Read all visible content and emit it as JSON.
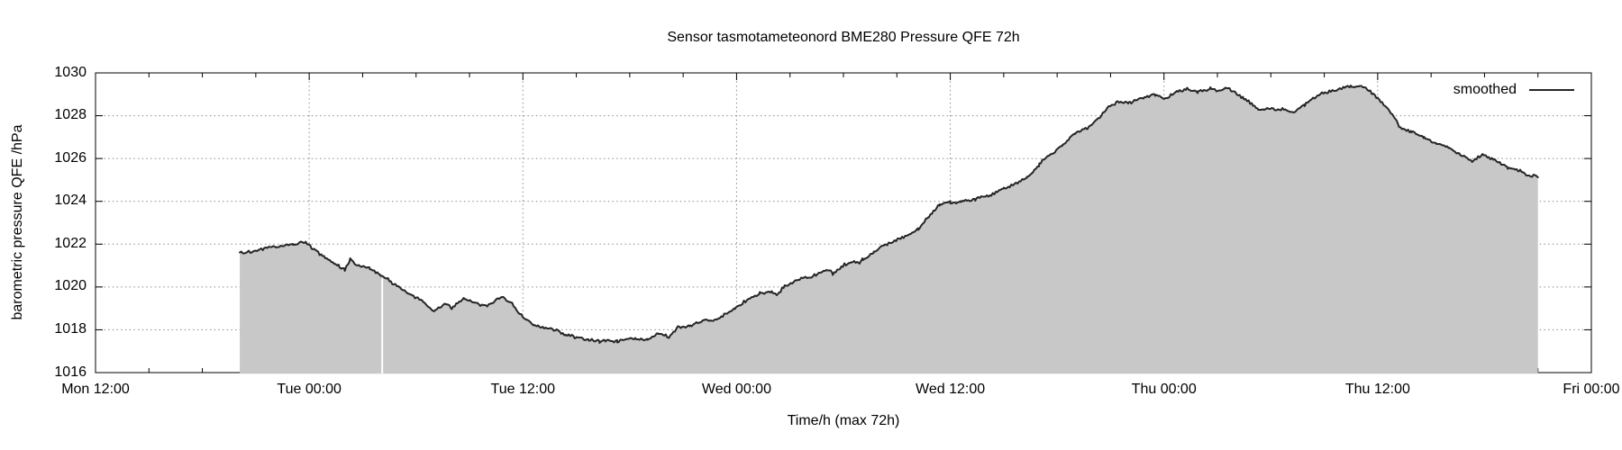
{
  "title": "Sensor tasmotameteonord BME280 Pressure QFE 72h",
  "legend": {
    "label": "smoothed"
  },
  "axes": {
    "x_label": "Time/h (max 72h)",
    "y_label": "barometric pressure QFE /hPa"
  },
  "colors": {
    "background": "#ffffff",
    "fill": "#c8c8c8",
    "line": "#262626",
    "grid": "#8a8a8a",
    "border": "#000000",
    "text": "#000000",
    "gap": "#ffffff"
  },
  "chart_data": {
    "type": "area",
    "title": "Sensor tasmotameteonord BME280 Pressure QFE 72h",
    "xlabel": "Time/h (max 72h)",
    "ylabel": "barometric pressure QFE /hPa",
    "ylim": [
      1016,
      1030
    ],
    "y_tick_step": 2,
    "x_range_hours": [
      0,
      84
    ],
    "grid": true,
    "legend_position": "top-right",
    "x_ticks": [
      {
        "hour": 0,
        "label": "Mon 12:00"
      },
      {
        "hour": 12,
        "label": "Tue 00:00"
      },
      {
        "hour": 24,
        "label": "Tue 12:00"
      },
      {
        "hour": 36,
        "label": "Wed 00:00"
      },
      {
        "hour": 48,
        "label": "Wed 12:00"
      },
      {
        "hour": 60,
        "label": "Thu 00:00"
      },
      {
        "hour": 72,
        "label": "Thu 12:00"
      },
      {
        "hour": 84,
        "label": "Fri 00:00"
      }
    ],
    "y_ticks": [
      {
        "value": 1016,
        "label": "1016"
      },
      {
        "value": 1018,
        "label": "1018"
      },
      {
        "value": 1020,
        "label": "1020"
      },
      {
        "value": 1022,
        "label": "1022"
      },
      {
        "value": 1024,
        "label": "1024"
      },
      {
        "value": 1026,
        "label": "1026"
      },
      {
        "value": 1028,
        "label": "1028"
      },
      {
        "value": 1030,
        "label": "1030"
      }
    ],
    "minor_tick_hours": 3,
    "data_start_hour": 8.1,
    "data_end_hour": 81.0,
    "data_gap_hour": 16.1,
    "series": [
      {
        "name": "smoothed",
        "style": "filled-noisy-line",
        "points": [
          [
            8.1,
            1021.6
          ],
          [
            8.8,
            1021.65
          ],
          [
            9.8,
            1021.85
          ],
          [
            10.5,
            1021.9
          ],
          [
            11.1,
            1022.0
          ],
          [
            11.8,
            1022.1
          ],
          [
            12.2,
            1021.8
          ],
          [
            12.5,
            1021.6
          ],
          [
            12.9,
            1021.4
          ],
          [
            13.4,
            1021.1
          ],
          [
            13.7,
            1020.95
          ],
          [
            14.0,
            1020.8
          ],
          [
            14.3,
            1021.3
          ],
          [
            14.7,
            1021.0
          ],
          [
            15.4,
            1020.9
          ],
          [
            16.0,
            1020.55
          ],
          [
            16.5,
            1020.3
          ],
          [
            17.1,
            1019.95
          ],
          [
            17.6,
            1019.7
          ],
          [
            18.1,
            1019.45
          ],
          [
            18.4,
            1019.3
          ],
          [
            19.0,
            1018.85
          ],
          [
            19.7,
            1019.25
          ],
          [
            20.0,
            1019.0
          ],
          [
            20.7,
            1019.5
          ],
          [
            21.1,
            1019.3
          ],
          [
            22.0,
            1019.1
          ],
          [
            22.5,
            1019.4
          ],
          [
            22.9,
            1019.5
          ],
          [
            23.4,
            1019.2
          ],
          [
            24.0,
            1018.6
          ],
          [
            24.6,
            1018.2
          ],
          [
            25.4,
            1018.05
          ],
          [
            25.9,
            1017.95
          ],
          [
            26.4,
            1017.75
          ],
          [
            27.0,
            1017.65
          ],
          [
            27.7,
            1017.55
          ],
          [
            28.3,
            1017.45
          ],
          [
            28.7,
            1017.5
          ],
          [
            29.3,
            1017.45
          ],
          [
            29.7,
            1017.55
          ],
          [
            30.3,
            1017.6
          ],
          [
            31.0,
            1017.55
          ],
          [
            31.6,
            1017.85
          ],
          [
            32.2,
            1017.65
          ],
          [
            32.7,
            1018.1
          ],
          [
            33.4,
            1018.2
          ],
          [
            34.1,
            1018.4
          ],
          [
            34.8,
            1018.5
          ],
          [
            35.3,
            1018.7
          ],
          [
            35.9,
            1019.0
          ],
          [
            36.6,
            1019.4
          ],
          [
            37.3,
            1019.7
          ],
          [
            38.0,
            1019.75
          ],
          [
            38.3,
            1019.65
          ],
          [
            38.7,
            1020.05
          ],
          [
            39.2,
            1020.25
          ],
          [
            39.7,
            1020.4
          ],
          [
            40.2,
            1020.5
          ],
          [
            40.7,
            1020.65
          ],
          [
            41.2,
            1020.8
          ],
          [
            41.4,
            1020.6
          ],
          [
            41.8,
            1020.9
          ],
          [
            42.2,
            1021.1
          ],
          [
            42.6,
            1021.2
          ],
          [
            42.9,
            1021.1
          ],
          [
            43.1,
            1021.3
          ],
          [
            43.7,
            1021.6
          ],
          [
            44.2,
            1021.9
          ],
          [
            44.7,
            1022.1
          ],
          [
            45.6,
            1022.4
          ],
          [
            46.2,
            1022.7
          ],
          [
            46.8,
            1023.3
          ],
          [
            47.4,
            1023.85
          ],
          [
            48.0,
            1023.95
          ],
          [
            48.4,
            1023.9
          ],
          [
            48.6,
            1024.0
          ],
          [
            49.4,
            1024.1
          ],
          [
            49.8,
            1024.2
          ],
          [
            50.3,
            1024.3
          ],
          [
            51.0,
            1024.6
          ],
          [
            51.7,
            1024.85
          ],
          [
            52.3,
            1025.1
          ],
          [
            53.0,
            1025.7
          ],
          [
            53.2,
            1025.95
          ],
          [
            53.7,
            1026.2
          ],
          [
            54.3,
            1026.6
          ],
          [
            55.0,
            1027.2
          ],
          [
            55.7,
            1027.4
          ],
          [
            56.4,
            1027.9
          ],
          [
            56.9,
            1028.45
          ],
          [
            57.4,
            1028.65
          ],
          [
            58.0,
            1028.6
          ],
          [
            58.9,
            1028.85
          ],
          [
            59.5,
            1029.0
          ],
          [
            60.0,
            1028.8
          ],
          [
            60.3,
            1028.9
          ],
          [
            60.8,
            1029.15
          ],
          [
            61.3,
            1029.25
          ],
          [
            61.9,
            1029.1
          ],
          [
            62.6,
            1029.25
          ],
          [
            63.1,
            1029.15
          ],
          [
            63.6,
            1029.3
          ],
          [
            64.0,
            1029.05
          ],
          [
            64.5,
            1028.8
          ],
          [
            65.0,
            1028.5
          ],
          [
            65.3,
            1028.3
          ],
          [
            65.8,
            1028.3
          ],
          [
            66.8,
            1028.3
          ],
          [
            67.3,
            1028.15
          ],
          [
            67.9,
            1028.5
          ],
          [
            68.2,
            1028.7
          ],
          [
            68.7,
            1029.0
          ],
          [
            69.2,
            1029.1
          ],
          [
            69.9,
            1029.3
          ],
          [
            70.5,
            1029.35
          ],
          [
            71.0,
            1029.4
          ],
          [
            71.5,
            1029.2
          ],
          [
            72.0,
            1028.8
          ],
          [
            72.4,
            1028.45
          ],
          [
            72.9,
            1028.0
          ],
          [
            73.2,
            1027.5
          ],
          [
            73.9,
            1027.25
          ],
          [
            74.6,
            1027.0
          ],
          [
            75.3,
            1026.7
          ],
          [
            76.0,
            1026.5
          ],
          [
            76.6,
            1026.2
          ],
          [
            77.3,
            1025.9
          ],
          [
            77.9,
            1026.2
          ],
          [
            78.6,
            1025.9
          ],
          [
            79.3,
            1025.6
          ],
          [
            80.0,
            1025.45
          ],
          [
            80.5,
            1025.15
          ],
          [
            80.8,
            1025.25
          ],
          [
            81.0,
            1025.15
          ]
        ]
      }
    ]
  }
}
